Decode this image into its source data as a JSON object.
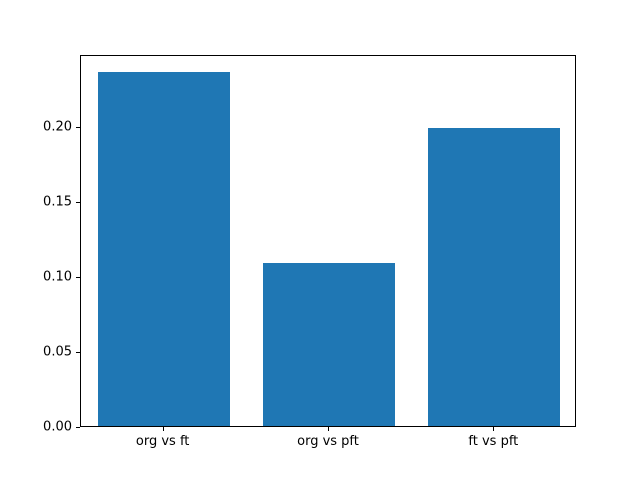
{
  "chart_data": {
    "type": "bar",
    "title": "",
    "categories": [
      "org vs ft",
      "org vs pft",
      "ft vs pft"
    ],
    "values": [
      0.236,
      0.109,
      0.199
    ],
    "xlabel": "",
    "ylabel": "",
    "ylim": [
      0,
      0.248
    ],
    "yticks": [
      0,
      0.05,
      0.1,
      0.15,
      0.2
    ],
    "ytick_labels": [
      "0.00",
      "0.05",
      "0.10",
      "0.15",
      "0.20"
    ],
    "bar_color": "#1f77b4",
    "bar_width_fraction": 0.8,
    "background_color": "#ffffff",
    "grid": false,
    "legend": "none"
  }
}
